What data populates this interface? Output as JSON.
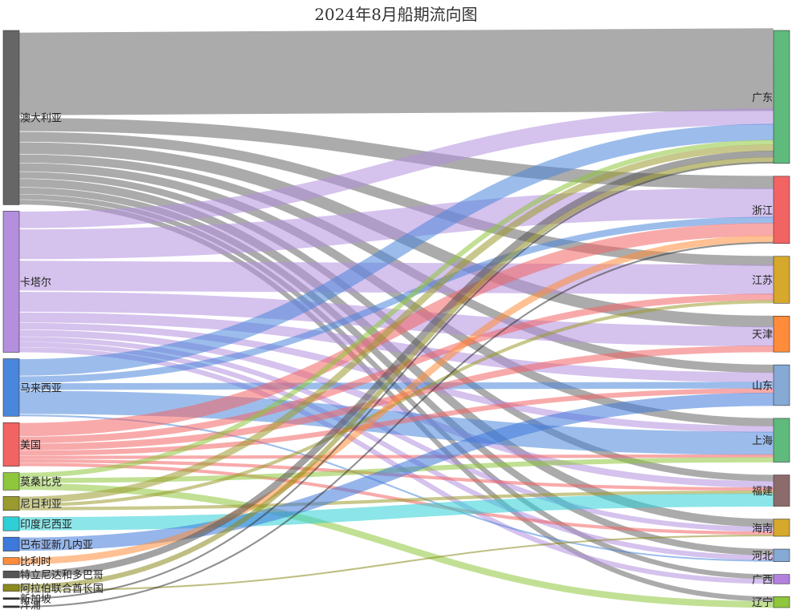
{
  "chart_data": {
    "type": "sankey",
    "title": "2024年8月船期流向图",
    "sources": [
      {
        "name": "澳大利亚",
        "color": "#666666"
      },
      {
        "name": "卡塔尔",
        "color": "#b38fde"
      },
      {
        "name": "马来西亚",
        "color": "#4a86db"
      },
      {
        "name": "美国",
        "color": "#f26464"
      },
      {
        "name": "莫桑比克",
        "color": "#8ec63c"
      },
      {
        "name": "尼日利亚",
        "color": "#9a9a2e"
      },
      {
        "name": "印度尼西亚",
        "color": "#2ecfd6"
      },
      {
        "name": "巴布亚新几内亚",
        "color": "#3f78db"
      },
      {
        "name": "比利时",
        "color": "#ff8c3a"
      },
      {
        "name": "特立尼达和多巴哥",
        "color": "#555555"
      },
      {
        "name": "阿拉伯联合酋长国",
        "color": "#8a8a1e"
      },
      {
        "name": "新加坡",
        "color": "#333333"
      },
      {
        "name": "洋浦",
        "color": "#333333"
      }
    ],
    "targets": [
      {
        "name": "广东",
        "color": "#5fba7d"
      },
      {
        "name": "浙江",
        "color": "#f26464"
      },
      {
        "name": "江苏",
        "color": "#d6a82c"
      },
      {
        "name": "天津",
        "color": "#ff8c3a"
      },
      {
        "name": "山东",
        "color": "#86a9d6"
      },
      {
        "name": "上海",
        "color": "#5fba7d"
      },
      {
        "name": "福建",
        "color": "#8c6b6b"
      },
      {
        "name": "海南",
        "color": "#d6a82c"
      },
      {
        "name": "河北",
        "color": "#86a9d6"
      },
      {
        "name": "广西",
        "color": "#b380de"
      },
      {
        "name": "辽宁",
        "color": "#8ec63c"
      }
    ],
    "links": [
      {
        "source": "澳大利亚",
        "target": "广东",
        "value": 50
      },
      {
        "source": "澳大利亚",
        "target": "浙江",
        "value": 8
      },
      {
        "source": "澳大利亚",
        "target": "江苏",
        "value": 6
      },
      {
        "source": "澳大利亚",
        "target": "天津",
        "value": 7
      },
      {
        "source": "澳大利亚",
        "target": "山东",
        "value": 5
      },
      {
        "source": "澳大利亚",
        "target": "上海",
        "value": 5
      },
      {
        "source": "澳大利亚",
        "target": "福建",
        "value": 4
      },
      {
        "source": "澳大利亚",
        "target": "海南",
        "value": 5
      },
      {
        "source": "澳大利亚",
        "target": "河北",
        "value": 4
      },
      {
        "source": "澳大利亚",
        "target": "广西",
        "value": 3
      },
      {
        "source": "澳大利亚",
        "target": "辽宁",
        "value": 3
      },
      {
        "source": "卡塔尔",
        "target": "广东",
        "value": 10
      },
      {
        "source": "卡塔尔",
        "target": "浙江",
        "value": 18
      },
      {
        "source": "卡塔尔",
        "target": "江苏",
        "value": 18
      },
      {
        "source": "卡塔尔",
        "target": "天津",
        "value": 12
      },
      {
        "source": "卡塔尔",
        "target": "山东",
        "value": 6
      },
      {
        "source": "卡塔尔",
        "target": "上海",
        "value": 4
      },
      {
        "source": "卡塔尔",
        "target": "福建",
        "value": 4
      },
      {
        "source": "卡塔尔",
        "target": "海南",
        "value": 3
      },
      {
        "source": "卡塔尔",
        "target": "河北",
        "value": 3
      },
      {
        "source": "卡塔尔",
        "target": "广西",
        "value": 3
      },
      {
        "source": "马来西亚",
        "target": "广东",
        "value": 10
      },
      {
        "source": "马来西亚",
        "target": "浙江",
        "value": 4
      },
      {
        "source": "马来西亚",
        "target": "上海",
        "value": 14
      },
      {
        "source": "马来西亚",
        "target": "河北",
        "value": 1
      },
      {
        "source": "马来西亚",
        "target": "山东",
        "value": 4
      },
      {
        "source": "美国",
        "target": "浙江",
        "value": 8
      },
      {
        "source": "美国",
        "target": "江苏",
        "value": 4
      },
      {
        "source": "美国",
        "target": "天津",
        "value": 4
      },
      {
        "source": "美国",
        "target": "山东",
        "value": 3
      },
      {
        "source": "美国",
        "target": "上海",
        "value": 2
      },
      {
        "source": "美国",
        "target": "福建",
        "value": 2
      },
      {
        "source": "美国",
        "target": "海南",
        "value": 2
      },
      {
        "source": "莫桑比克",
        "target": "广东",
        "value": 3
      },
      {
        "source": "莫桑比克",
        "target": "上海",
        "value": 3
      },
      {
        "source": "莫桑比克",
        "target": "辽宁",
        "value": 4
      },
      {
        "source": "尼日利亚",
        "target": "广东",
        "value": 4
      },
      {
        "source": "尼日利亚",
        "target": "江苏",
        "value": 2
      },
      {
        "source": "尼日利亚",
        "target": "福建",
        "value": 2
      },
      {
        "source": "印度尼西亚",
        "target": "福建",
        "value": 8
      },
      {
        "source": "巴布亚新几内亚",
        "target": "山东",
        "value": 8
      },
      {
        "source": "比利时",
        "target": "浙江",
        "value": 4
      },
      {
        "source": "特立尼达和多巴哥",
        "target": "广东",
        "value": 4
      },
      {
        "source": "阿拉伯联合酋长国",
        "target": "广东",
        "value": 3
      },
      {
        "source": "阿拉伯联合酋长国",
        "target": "海南",
        "value": 1
      },
      {
        "source": "新加坡",
        "target": "广东",
        "value": 1
      },
      {
        "source": "洋浦",
        "target": "浙江",
        "value": 1
      }
    ]
  }
}
